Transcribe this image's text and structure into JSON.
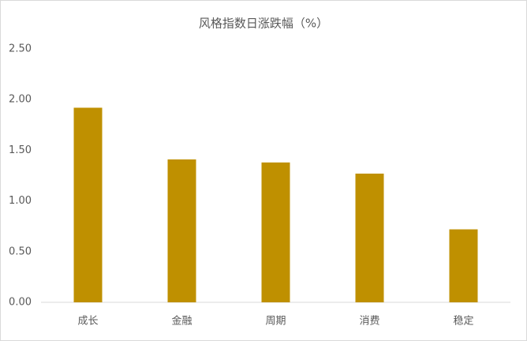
{
  "chart_data": {
    "type": "bar",
    "title": "风格指数日涨跌幅（%）",
    "categories": [
      "成长",
      "金融",
      "周期",
      "消费",
      "稳定"
    ],
    "values": [
      1.92,
      1.41,
      1.38,
      1.27,
      0.72
    ],
    "color": "#bf9000",
    "ylim": [
      0,
      2.5
    ],
    "yticks": [
      {
        "value": 0,
        "label": "0.00"
      },
      {
        "value": 0.5,
        "label": "0.50"
      },
      {
        "value": 1,
        "label": "1.00"
      },
      {
        "value": 1.5,
        "label": "1.50"
      },
      {
        "value": 2,
        "label": "2.00"
      },
      {
        "value": 2.5,
        "label": "2.50"
      }
    ],
    "grid": false
  }
}
